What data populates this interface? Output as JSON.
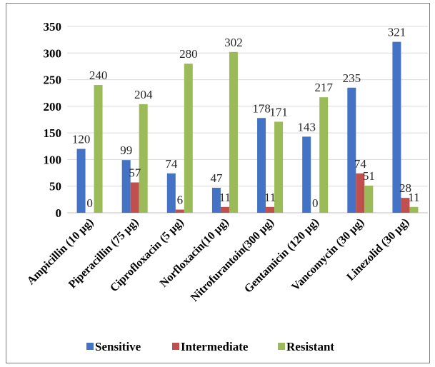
{
  "chart_data": {
    "type": "bar",
    "title": "",
    "xlabel": "",
    "ylabel": "",
    "ylim": [
      0,
      350
    ],
    "yticks": [
      0,
      50,
      100,
      150,
      200,
      250,
      300,
      350
    ],
    "grid": true,
    "legend_position": "bottom",
    "categories": [
      "Ampicillin (10 µg)",
      "Piperacillin (75 µg)",
      "Ciprofloxacin (5 µg)",
      "Norfloxacin(10 µg)",
      "Nitrofurantoin(300 µg)",
      "Gentamicin (120 µg)",
      "Vancomycin (30 µg)",
      "Linezolid (30 µg)"
    ],
    "series": [
      {
        "name": "Sensitive",
        "color": "#4472C4",
        "values": [
          120,
          99,
          74,
          47,
          178,
          143,
          235,
          321
        ]
      },
      {
        "name": "Intermediate",
        "color": "#C0504D",
        "values": [
          0,
          57,
          6,
          11,
          11,
          0,
          74,
          28
        ]
      },
      {
        "name": "Resistant",
        "color": "#9BBB59",
        "values": [
          240,
          204,
          280,
          302,
          171,
          217,
          51,
          11
        ]
      }
    ]
  }
}
